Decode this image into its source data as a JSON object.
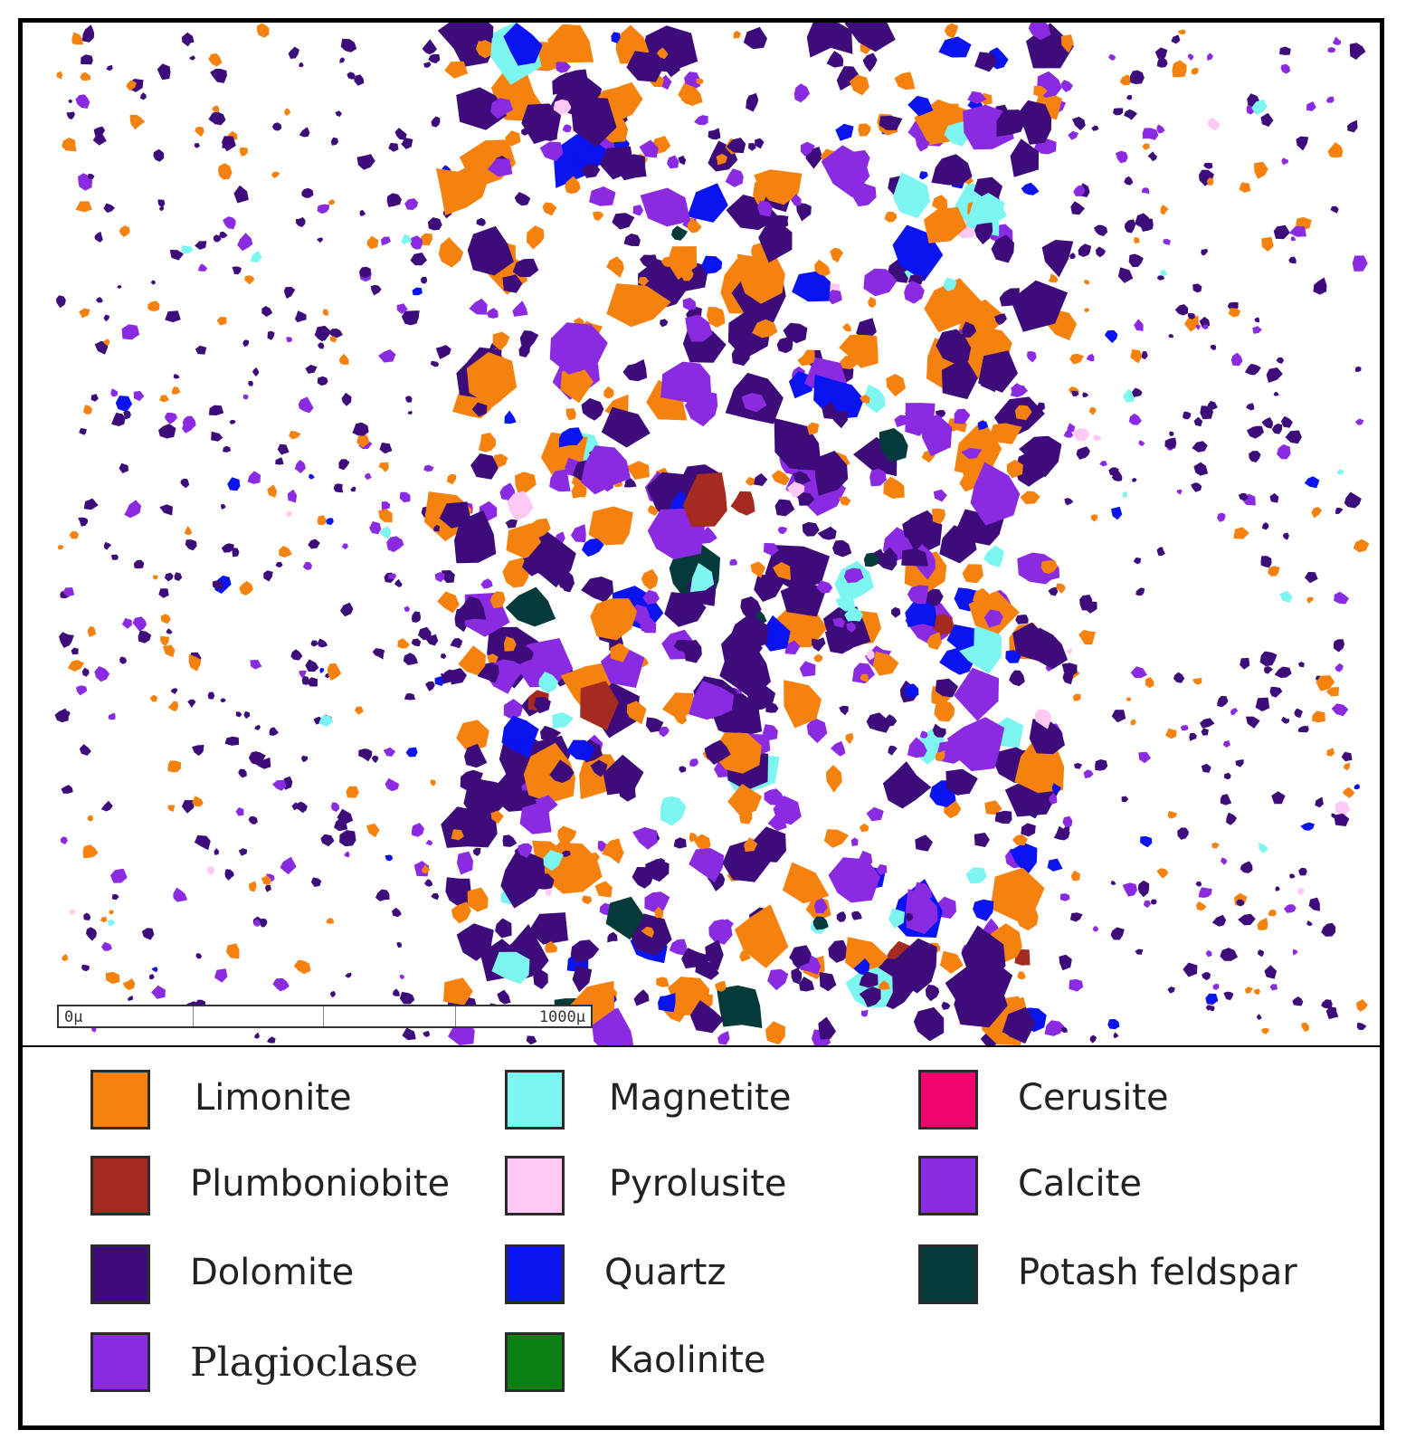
{
  "scale_bar": {
    "start_label": "0µ",
    "end_label": "1000µ"
  },
  "legend": [
    {
      "label": "Limonite",
      "color": "#F5820F"
    },
    {
      "label": "Plumboniobite",
      "color": "#A52A22"
    },
    {
      "label": "Dolomite",
      "color": "#3D0C7A"
    },
    {
      "label": "Plagioclase",
      "color": "#8A2BE2"
    },
    {
      "label": "Magnetite",
      "color": "#7DF5F0"
    },
    {
      "label": "Pyrolusite",
      "color": "#FFC8F5"
    },
    {
      "label": "Quartz",
      "color": "#0A14F0"
    },
    {
      "label": "Kaolinite",
      "color": "#0A7F12"
    },
    {
      "label": "Cerusite",
      "color": "#F0056E"
    },
    {
      "label": "Calcite",
      "color": "#8A2BE2"
    },
    {
      "label": "Potash feldspar",
      "color": "#053A3A"
    }
  ]
}
